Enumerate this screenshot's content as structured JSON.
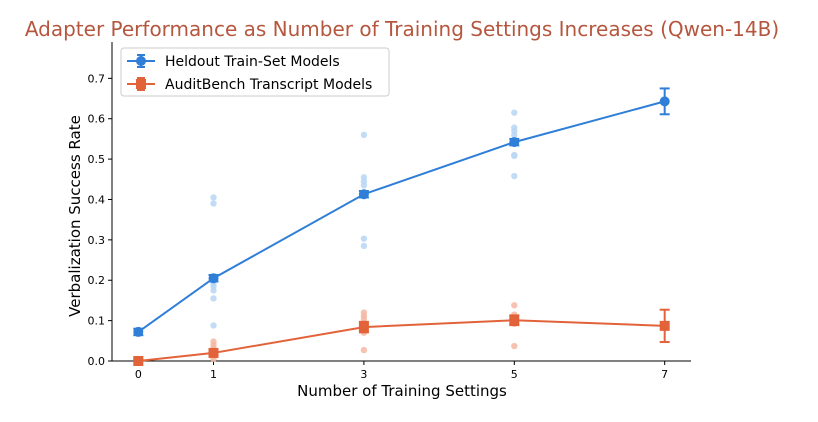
{
  "chart_data": {
    "type": "line",
    "title": "Adapter Performance as Number of Training Settings Increases (Qwen-14B)",
    "title_color": "#B5573F",
    "xlabel": "Number of Training Settings",
    "ylabel": "Verbalization Success Rate",
    "xlim": [
      -0.35,
      7.35
    ],
    "ylim": [
      0,
      0.79
    ],
    "x_ticks": [
      0,
      1,
      3,
      5,
      7
    ],
    "x_tick_labels": [
      "0",
      "1",
      "3",
      "5",
      "7"
    ],
    "y_ticks": [
      0.0,
      0.1,
      0.2,
      0.3,
      0.4,
      0.5,
      0.6,
      0.7
    ],
    "y_tick_labels": [
      "0.0",
      "0.1",
      "0.2",
      "0.3",
      "0.4",
      "0.5",
      "0.6",
      "0.7"
    ],
    "grid": false,
    "legend_position": "top-left",
    "series": [
      {
        "name": "Heldout Train-Set Models",
        "color": "#2F7ED8",
        "scatter_color": "#B8D6F3",
        "marker": "circle",
        "x": [
          0,
          1,
          3,
          5,
          7
        ],
        "y": [
          0.072,
          0.205,
          0.413,
          0.542,
          0.643
        ],
        "error": [
          0.008,
          0.008,
          0.008,
          0.008,
          0.032
        ],
        "individual_points": [
          {
            "x": 1,
            "y": [
              0.405,
              0.39,
              0.192,
              0.185,
              0.175,
              0.155,
              0.088
            ]
          },
          {
            "x": 3,
            "y": [
              0.56,
              0.455,
              0.445,
              0.435,
              0.303,
              0.285
            ]
          },
          {
            "x": 5,
            "y": [
              0.615,
              0.578,
              0.57,
              0.56,
              0.51,
              0.508,
              0.458
            ]
          }
        ]
      },
      {
        "name": "AuditBench Transcript Models",
        "color": "#E2633A",
        "scatter_color": "#F4B9A4",
        "marker": "square",
        "x": [
          0,
          1,
          3,
          5,
          7
        ],
        "y": [
          0.0,
          0.02,
          0.084,
          0.101,
          0.087
        ],
        "error": [
          0.004,
          0.006,
          0.013,
          0.012,
          0.04
        ],
        "individual_points": [
          {
            "x": 0,
            "y": [
              0.005,
              0.002
            ]
          },
          {
            "x": 1,
            "y": [
              0.048,
              0.04,
              0.032,
              0.025,
              0.012,
              0.005
            ]
          },
          {
            "x": 3,
            "y": [
              0.12,
              0.112,
              0.105,
              0.095,
              0.07,
              0.027
            ]
          },
          {
            "x": 5,
            "y": [
              0.138,
              0.115,
              0.108,
              0.092,
              0.037
            ]
          }
        ]
      }
    ]
  }
}
